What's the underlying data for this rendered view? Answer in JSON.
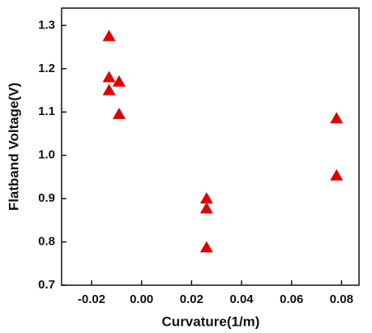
{
  "chart_data": {
    "type": "scatter",
    "xlabel": "Curvature(1/m)",
    "ylabel": "Flatband Voltage(V)",
    "x": [
      -0.013,
      -0.013,
      -0.009,
      -0.013,
      -0.009,
      0.026,
      0.026,
      0.026,
      0.078,
      0.078
    ],
    "values": [
      1.275,
      1.18,
      1.17,
      1.15,
      1.095,
      0.9,
      0.877,
      0.787,
      1.085,
      0.953
    ],
    "color": "#e00000",
    "marker": "triangle",
    "xlim": [
      -0.032,
      0.087
    ],
    "xticks": [
      {
        "value": -0.02,
        "label": "-0.02"
      },
      {
        "value": 0,
        "label": "0.00"
      },
      {
        "value": 0.02,
        "label": "0.02"
      },
      {
        "value": 0.04,
        "label": "0.04"
      },
      {
        "value": 0.06,
        "label": "0.06"
      },
      {
        "value": 0.08,
        "label": "0.08"
      }
    ],
    "ylim": [
      0.7,
      1.34
    ],
    "yticks": [
      0.7,
      0.8,
      0.9,
      {
        "value": 1.0,
        "label": "1.0"
      },
      1.1,
      1.2,
      1.3
    ]
  }
}
